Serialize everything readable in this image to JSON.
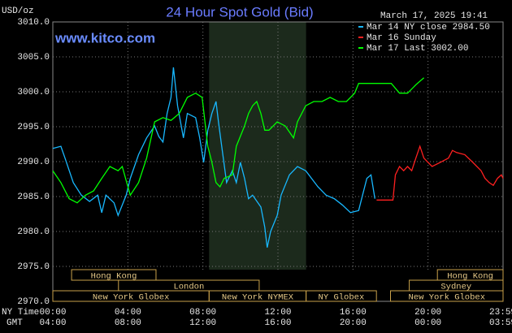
{
  "chart_data": {
    "type": "line",
    "title": "24 Hour Spot Gold (Bid)",
    "site": "www.kitco.com",
    "timestamp": "March 17, 2025 19:41",
    "ylabel": "USD/oz",
    "x_row_labels": [
      "NY Time",
      "GMT"
    ],
    "ylim": [
      2970,
      3010
    ],
    "yticks": [
      {
        "value": 2970,
        "label": "2970.0"
      },
      {
        "value": 2975,
        "label": "2975.0"
      },
      {
        "value": 2980,
        "label": "2980.0"
      },
      {
        "value": 2985,
        "label": "2985.0"
      },
      {
        "value": 2990,
        "label": "2990.0"
      },
      {
        "value": 2995,
        "label": "2995.0"
      },
      {
        "value": 3000,
        "label": "3000.0"
      },
      {
        "value": 3005,
        "label": "3005.0"
      },
      {
        "value": 3010,
        "label": "3010.0"
      }
    ],
    "xlim": [
      0,
      24
    ],
    "xticks": [
      {
        "value": 0,
        "label": "00:00"
      },
      {
        "value": 4,
        "label": "04:00"
      },
      {
        "value": 8,
        "label": "08:00"
      },
      {
        "value": 12,
        "label": "12:00"
      },
      {
        "value": 16,
        "label": "16:00"
      },
      {
        "value": 20,
        "label": "20:00"
      },
      {
        "value": 23.98,
        "label": "23:59"
      }
    ],
    "gmt_labels": [
      "04:00",
      "08:00",
      "12:00",
      "16:00",
      "20:00",
      "00:00",
      "03:59"
    ],
    "grid": true,
    "series": [
      {
        "name": "Mar 14 NY close 2984.50",
        "color": "#18b8ff",
        "x": [
          0,
          0.43,
          0.65,
          1.09,
          1.52,
          1.96,
          2.39,
          2.61,
          2.83,
          3.26,
          3.48,
          3.91,
          4.13,
          4.57,
          5.0,
          5.43,
          5.65,
          5.87,
          6.09,
          6.3,
          6.43,
          6.65,
          6.96,
          7.17,
          7.61,
          7.83,
          8.04,
          8.26,
          8.48,
          8.7,
          8.83,
          9.0,
          9.26,
          9.57,
          9.78,
          10.0,
          10.22,
          10.43,
          10.65,
          11.09,
          11.3,
          11.43,
          11.61,
          11.96,
          12.17,
          12.61,
          13.04,
          13.48,
          14.13,
          14.57,
          15.0,
          15.43,
          15.87,
          16.3,
          16.74,
          16.96,
          17.17
        ],
        "values": [
          2991.9,
          2992.2,
          2990.5,
          2987.0,
          2985.2,
          2984.3,
          2985.2,
          2982.7,
          2985.2,
          2984.1,
          2982.3,
          2985.2,
          2987.6,
          2991.0,
          2993.4,
          2995.1,
          2993.6,
          2992.8,
          2996.9,
          2999.2,
          3003.5,
          2998.0,
          2993.4,
          2996.9,
          2996.3,
          2993.4,
          2989.9,
          2994.5,
          2996.9,
          2998.6,
          2995.7,
          2992.2,
          2987.0,
          2988.7,
          2987.0,
          2989.9,
          2987.6,
          2984.7,
          2985.2,
          2983.5,
          2980.6,
          2977.7,
          2980.0,
          2982.3,
          2985.2,
          2988.1,
          2989.3,
          2988.7,
          2986.4,
          2985.2,
          2984.7,
          2983.8,
          2982.7,
          2983.0,
          2987.6,
          2988.1,
          2984.7
        ]
      },
      {
        "name": "Mar 16 Sunday",
        "color": "#ff2020",
        "x": [
          17.26,
          18.13,
          18.26,
          18.48,
          18.7,
          18.91,
          19.13,
          19.35,
          19.57,
          19.78,
          20.0,
          20.22,
          20.65,
          21.09,
          21.3,
          21.52,
          21.96,
          22.39,
          22.83,
          23.04,
          23.26,
          23.48,
          23.7,
          23.91,
          24.0
        ],
        "values": [
          2984.5,
          2984.5,
          2988.1,
          2989.3,
          2988.7,
          2989.3,
          2988.7,
          2990.5,
          2992.2,
          2990.5,
          2989.9,
          2989.3,
          2989.9,
          2990.5,
          2991.6,
          2991.3,
          2991.0,
          2989.9,
          2988.7,
          2987.6,
          2987.0,
          2986.6,
          2987.6,
          2988.1,
          2987.6
        ]
      },
      {
        "name": "Mar 17 Last 3002.00",
        "color": "#00ff00",
        "x": [
          0,
          0.43,
          0.87,
          1.3,
          1.74,
          2.17,
          2.61,
          3.04,
          3.48,
          3.7,
          4.13,
          4.57,
          5.0,
          5.43,
          5.87,
          6.3,
          6.74,
          7.17,
          7.61,
          7.96,
          8.26,
          8.48,
          8.7,
          8.91,
          9.13,
          9.57,
          9.78,
          10.22,
          10.43,
          10.65,
          10.87,
          11.09,
          11.3,
          11.52,
          11.96,
          12.39,
          12.83,
          13.04,
          13.48,
          13.91,
          14.35,
          14.78,
          15.22,
          15.65,
          16.09,
          16.3,
          17.17,
          18.04,
          18.48,
          18.91,
          19.35,
          19.78
        ],
        "values": [
          2988.7,
          2987.0,
          2984.7,
          2984.1,
          2985.2,
          2985.8,
          2987.6,
          2989.3,
          2988.7,
          2989.3,
          2985.2,
          2987.0,
          2990.5,
          2995.7,
          2996.3,
          2995.9,
          2996.9,
          2999.2,
          2999.8,
          2999.2,
          2992.2,
          2989.9,
          2987.0,
          2986.4,
          2987.6,
          2988.1,
          2992.2,
          2995.1,
          2996.9,
          2998.0,
          2998.6,
          2996.9,
          2994.5,
          2994.5,
          2995.7,
          2995.1,
          2993.4,
          2995.7,
          2998.0,
          2998.6,
          2998.6,
          2999.2,
          2998.6,
          2998.6,
          2999.8,
          3001.2,
          3001.2,
          3001.2,
          2999.8,
          2999.8,
          3001.0,
          3002.0
        ]
      }
    ],
    "session_rows": [
      [
        {
          "name": "Hong Kong",
          "start": 1.0,
          "end": 5.5
        },
        {
          "name": "Hong Kong",
          "start": 20.5,
          "end": 24
        }
      ],
      [
        {
          "name": "London",
          "start": 3.5,
          "end": 11.0
        },
        {
          "name": "Sydney",
          "start": 19.0,
          "end": 24
        }
      ],
      [
        {
          "name": "New York Globex",
          "start": 0,
          "end": 8.33
        },
        {
          "name": "New York NYMEX",
          "start": 8.33,
          "end": 13.5,
          "shade": true
        },
        {
          "name": "NY Globex",
          "start": 13.5,
          "end": 17.25
        },
        {
          "name": "New York Globex",
          "start": 18.0,
          "end": 24
        }
      ]
    ]
  }
}
